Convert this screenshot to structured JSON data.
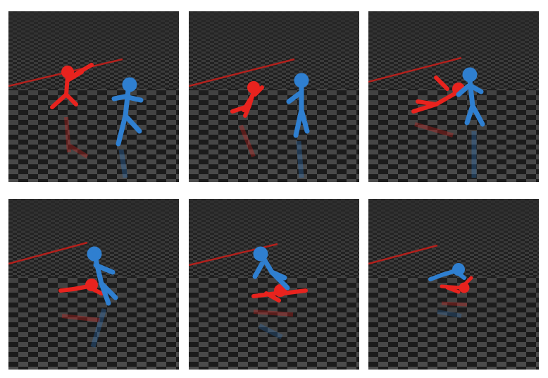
{
  "figure": {
    "panels": [
      {
        "id": "frame-1"
      },
      {
        "id": "frame-2"
      },
      {
        "id": "frame-3"
      },
      {
        "id": "frame-4"
      },
      {
        "id": "frame-5"
      },
      {
        "id": "frame-6"
      }
    ],
    "colors": {
      "background": "#ffffff",
      "floor_dark": "#1c1c1c",
      "floor_light": "#4a4a4a",
      "red_agent": "#e8231e",
      "blue_agent": "#2f7fd0",
      "boundary_line": "#b3201c"
    }
  }
}
